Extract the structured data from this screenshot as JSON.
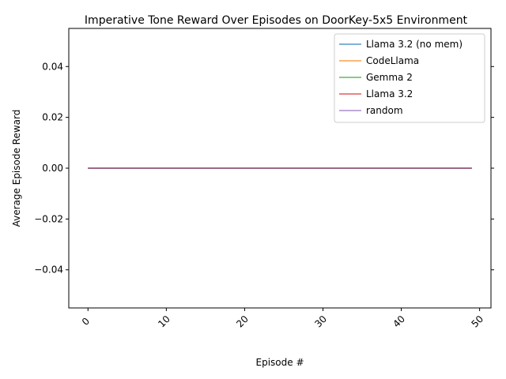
{
  "chart_data": {
    "type": "line",
    "title": "Imperative Tone Reward Over Episodes on DoorKey-5x5 Environment",
    "xlabel": "Episode #",
    "ylabel": "Average Episode Reward",
    "xlim": [
      -2.45,
      51.45
    ],
    "ylim": [
      -0.055,
      0.055
    ],
    "xticks": [
      0,
      10,
      20,
      30,
      40,
      50
    ],
    "xtick_labels": [
      "0",
      "10",
      "20",
      "30",
      "40",
      "50"
    ],
    "xtick_rotation_deg": 45,
    "yticks": [
      -0.04,
      -0.02,
      0.0,
      0.02,
      0.04
    ],
    "ytick_labels": [
      "−0.04",
      "−0.02",
      "0.00",
      "0.02",
      "0.04"
    ],
    "ticks_on_right": true,
    "grid": false,
    "legend_position": "top-right",
    "x": [
      0,
      49
    ],
    "series": [
      {
        "name": "Llama 3.2 (no mem)",
        "color": "#1f77b4",
        "values": [
          0,
          0
        ]
      },
      {
        "name": "CodeLlama",
        "color": "#ff7f0e",
        "values": [
          0,
          0
        ]
      },
      {
        "name": "Gemma 2",
        "color": "#2ca02c",
        "values": [
          0,
          0
        ]
      },
      {
        "name": "Llama 3.2",
        "color": "#d62728",
        "values": [
          0,
          0
        ]
      },
      {
        "name": "random",
        "color": "#9467bd",
        "values": [
          0,
          0
        ]
      }
    ]
  }
}
